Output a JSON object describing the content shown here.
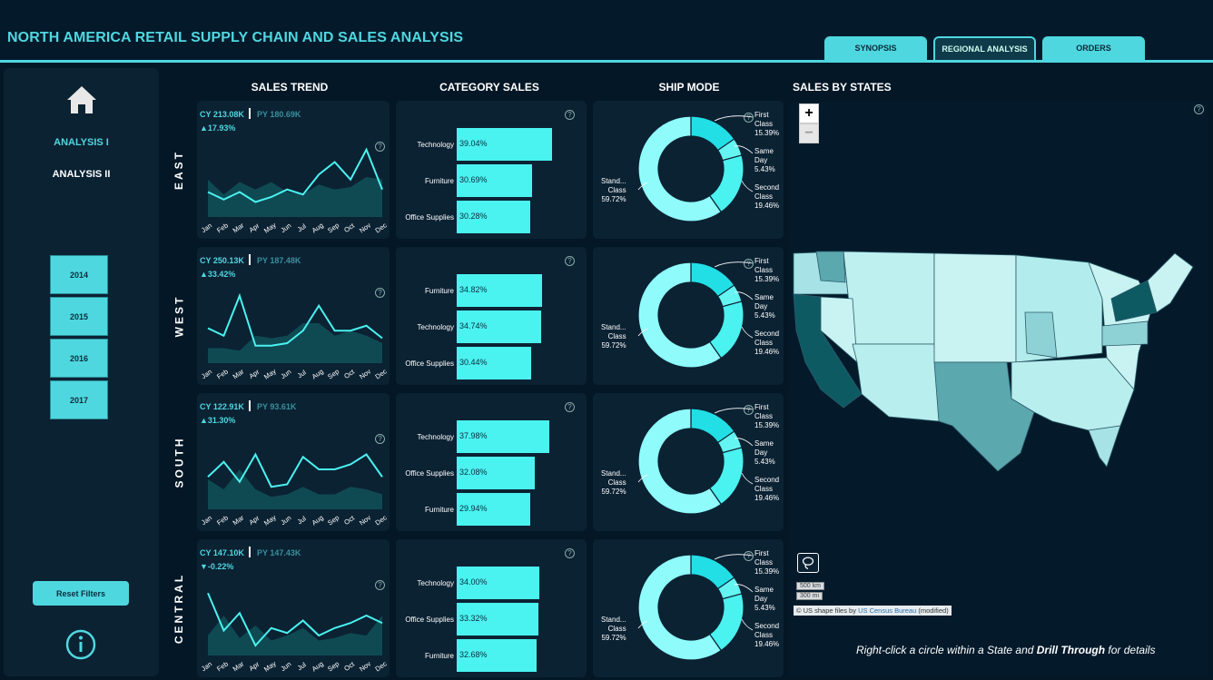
{
  "header": {
    "title": "NORTH AMERICA RETAIL SUPPLY CHAIN AND SALES ANALYSIS"
  },
  "tabs": [
    {
      "label": "SYNOPSIS"
    },
    {
      "label": "REGIONAL ANALYSIS"
    },
    {
      "label": "ORDERS"
    }
  ],
  "sidebar": {
    "nav": [
      {
        "label": "ANALYSIS I"
      },
      {
        "label": "ANALYSIS II"
      }
    ],
    "years": [
      "2014",
      "2015",
      "2016",
      "2017"
    ],
    "reset_label": "Reset Filters"
  },
  "columns": {
    "trend": "SALES TREND",
    "category": "CATEGORY SALES",
    "ship": "SHIP MODE",
    "states": "SALES BY STATES"
  },
  "months": [
    "Jan",
    "Feb",
    "Mar",
    "Apr",
    "May",
    "Jun",
    "Jul",
    "Aug",
    "Sep",
    "Oct",
    "Nov",
    "Dec"
  ],
  "regions": [
    {
      "name": "EAST",
      "cy": "CY 213.08K",
      "py": "PY 180.69K",
      "change": "▲17.93%",
      "categories": [
        {
          "label": "Technology",
          "value": "39.04%"
        },
        {
          "label": "Furniture",
          "value": "30.69%"
        },
        {
          "label": "Office Supplies",
          "value": "30.28%"
        }
      ]
    },
    {
      "name": "WEST",
      "cy": "CY 250.13K",
      "py": "PY 187.48K",
      "change": "▲33.42%",
      "categories": [
        {
          "label": "Furniture",
          "value": "34.82%"
        },
        {
          "label": "Technology",
          "value": "34.74%"
        },
        {
          "label": "Office Supplies",
          "value": "30.44%"
        }
      ]
    },
    {
      "name": "SOUTH",
      "cy": "CY 122.91K",
      "py": "PY 93.61K",
      "change": "▲31.30%",
      "categories": [
        {
          "label": "Technology",
          "value": "37.98%"
        },
        {
          "label": "Office Supplies",
          "value": "32.08%"
        },
        {
          "label": "Furniture",
          "value": "29.94%"
        }
      ]
    },
    {
      "name": "CENTRAL",
      "cy": "CY 147.10K",
      "py": "PY 147.43K",
      "change": "▼-0.22%",
      "categories": [
        {
          "label": "Technology",
          "value": "34.00%"
        },
        {
          "label": "Office Supplies",
          "value": "33.32%"
        },
        {
          "label": "Furniture",
          "value": "32.68%"
        }
      ]
    }
  ],
  "ship_mode": {
    "first": [
      "First",
      "Class",
      "15.39%"
    ],
    "same": [
      "Same",
      "Day",
      "5.43%"
    ],
    "second": [
      "Second",
      "Class",
      "19.46%"
    ],
    "standard": [
      "Stand...",
      "Class",
      "59.72%"
    ]
  },
  "map": {
    "zoom_in": "+",
    "zoom_out": "−",
    "scale_km": "500 km",
    "scale_mi": "300 mi",
    "attribution_prefix": "© US shape files by ",
    "attribution_link": "US Census Bureau",
    "attribution_suffix": " (modified)",
    "hint_pre": "Right-click a circle within a State and ",
    "hint_bold": "Drill Through",
    "hint_post": " for details"
  },
  "chart_data": [
    {
      "type": "bar",
      "title": "CATEGORY SALES - EAST",
      "categories": [
        "Technology",
        "Furniture",
        "Office Supplies"
      ],
      "values": [
        39.04,
        30.69,
        30.28
      ]
    },
    {
      "type": "bar",
      "title": "CATEGORY SALES - WEST",
      "categories": [
        "Furniture",
        "Technology",
        "Office Supplies"
      ],
      "values": [
        34.82,
        34.74,
        30.44
      ]
    },
    {
      "type": "bar",
      "title": "CATEGORY SALES - SOUTH",
      "categories": [
        "Technology",
        "Office Supplies",
        "Furniture"
      ],
      "values": [
        37.98,
        32.08,
        29.94
      ]
    },
    {
      "type": "bar",
      "title": "CATEGORY SALES - CENTRAL",
      "categories": [
        "Technology",
        "Office Supplies",
        "Furniture"
      ],
      "values": [
        34.0,
        33.32,
        32.68
      ]
    },
    {
      "type": "pie",
      "title": "SHIP MODE",
      "categories": [
        "First Class",
        "Same Day",
        "Second Class",
        "Standard Class"
      ],
      "values": [
        15.39,
        5.43,
        19.46,
        59.72
      ]
    },
    {
      "type": "line",
      "title": "SALES TREND - EAST",
      "categories": [
        "Jan",
        "Feb",
        "Mar",
        "Apr",
        "May",
        "Jun",
        "Jul",
        "Aug",
        "Sep",
        "Oct",
        "Nov",
        "Dec"
      ],
      "series": [
        {
          "name": "CY",
          "values": [
            10,
            7,
            10,
            6,
            8,
            11,
            9,
            17,
            22,
            15,
            27,
            11
          ]
        },
        {
          "name": "PY",
          "values": [
            15,
            9,
            14,
            11,
            14,
            10,
            9,
            13,
            11,
            12,
            16,
            15
          ]
        }
      ],
      "ylim": [
        0,
        40
      ]
    },
    {
      "type": "line",
      "title": "SALES TREND - WEST",
      "categories": [
        "Jan",
        "Feb",
        "Mar",
        "Apr",
        "May",
        "Jun",
        "Jul",
        "Aug",
        "Sep",
        "Oct",
        "Nov",
        "Dec"
      ],
      "series": [
        {
          "name": "CY",
          "values": [
            14,
            11,
            27,
            7,
            7,
            8,
            13,
            23,
            13,
            13,
            15,
            10
          ]
        },
        {
          "name": "PY",
          "values": [
            6,
            6,
            5,
            11,
            10,
            11,
            16,
            16,
            11,
            13,
            11,
            8
          ]
        }
      ],
      "ylim": [
        0,
        40
      ]
    },
    {
      "type": "line",
      "title": "SALES TREND - SOUTH",
      "categories": [
        "Jan",
        "Feb",
        "Mar",
        "Apr",
        "May",
        "Jun",
        "Jul",
        "Aug",
        "Sep",
        "Oct",
        "Nov",
        "Dec"
      ],
      "series": [
        {
          "name": "CY",
          "values": [
            13,
            19,
            11,
            22,
            9,
            10,
            21,
            16,
            16,
            18,
            22,
            13
          ]
        },
        {
          "name": "PY",
          "values": [
            12,
            8,
            16,
            8,
            5,
            6,
            9,
            6,
            6,
            9,
            8,
            6
          ]
        }
      ],
      "ylim": [
        0,
        40
      ]
    },
    {
      "type": "line",
      "title": "SALES TREND - CENTRAL",
      "categories": [
        "Jan",
        "Feb",
        "Mar",
        "Apr",
        "May",
        "Jun",
        "Jul",
        "Aug",
        "Sep",
        "Oct",
        "Nov",
        "Dec"
      ],
      "series": [
        {
          "name": "CY",
          "values": [
            25,
            10,
            17,
            4,
            11,
            9,
            14,
            8,
            11,
            13,
            16,
            13
          ]
        },
        {
          "name": "PY",
          "values": [
            8,
            16,
            7,
            12,
            6,
            8,
            11,
            6,
            7,
            9,
            8,
            16
          ]
        }
      ],
      "ylim": [
        0,
        40
      ]
    }
  ]
}
